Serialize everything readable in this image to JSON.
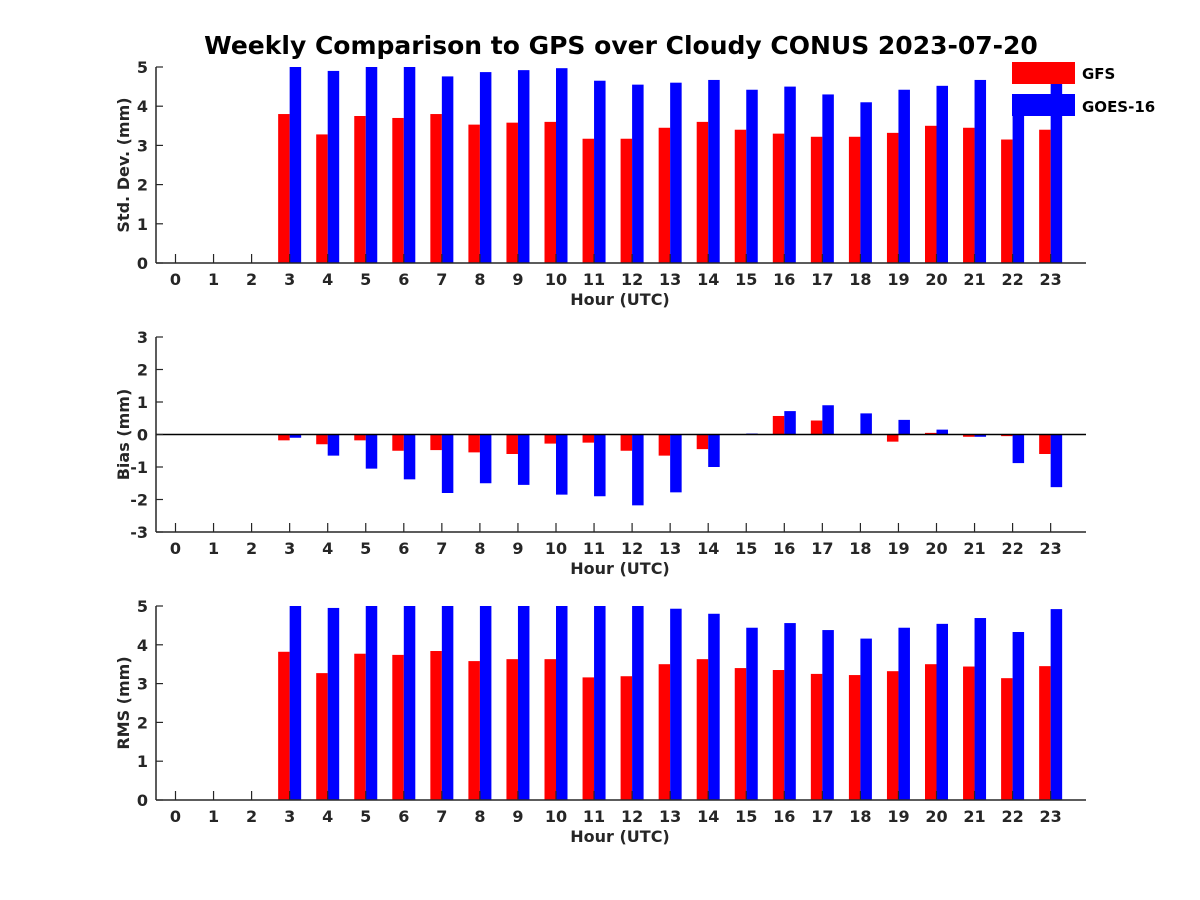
{
  "title": "Weekly Comparison to GPS over Cloudy CONUS 2023-07-20",
  "colors": {
    "gfs": "#ff0000",
    "goes": "#0000ff",
    "axis": "#262626"
  },
  "legend": [
    {
      "name": "GFS",
      "color": "#ff0000"
    },
    {
      "name": "GOES-16",
      "color": "#0000ff"
    }
  ],
  "legend_placement": "top-right",
  "chart_data": [
    {
      "type": "bar",
      "xlabel": "Hour (UTC)",
      "ylabel": "Std. Dev. (mm)",
      "ylim": [
        0,
        5
      ],
      "yticks": [
        0,
        1,
        2,
        3,
        4,
        5
      ],
      "categories": [
        "0",
        "1",
        "2",
        "3",
        "4",
        "5",
        "6",
        "7",
        "8",
        "9",
        "10",
        "11",
        "12",
        "13",
        "14",
        "15",
        "16",
        "17",
        "18",
        "19",
        "20",
        "21",
        "22",
        "23"
      ],
      "series": [
        {
          "name": "GFS",
          "values": [
            0,
            0,
            0,
            3.8,
            3.28,
            3.75,
            3.7,
            3.8,
            3.53,
            3.58,
            3.6,
            3.17,
            3.17,
            3.45,
            3.6,
            3.4,
            3.3,
            3.22,
            3.22,
            3.32,
            3.5,
            3.45,
            3.15,
            3.4
          ]
        },
        {
          "name": "GOES-16",
          "values": [
            0,
            0,
            0,
            5.0,
            4.9,
            5.0,
            5.0,
            4.76,
            4.87,
            4.92,
            4.97,
            4.65,
            4.55,
            4.6,
            4.67,
            4.42,
            4.5,
            4.3,
            4.1,
            4.42,
            4.52,
            4.67,
            4.25,
            4.7
          ]
        }
      ]
    },
    {
      "type": "bar",
      "xlabel": "Hour (UTC)",
      "ylabel": "Bias (mm)",
      "ylim": [
        -3,
        3
      ],
      "yticks": [
        -3,
        -2,
        -1,
        0,
        1,
        2,
        3
      ],
      "categories": [
        "0",
        "1",
        "2",
        "3",
        "4",
        "5",
        "6",
        "7",
        "8",
        "9",
        "10",
        "11",
        "12",
        "13",
        "14",
        "15",
        "16",
        "17",
        "18",
        "19",
        "20",
        "21",
        "22",
        "23"
      ],
      "series": [
        {
          "name": "GFS",
          "values": [
            0,
            0,
            0,
            -0.18,
            -0.3,
            -0.18,
            -0.5,
            -0.48,
            -0.55,
            -0.6,
            -0.28,
            -0.25,
            -0.5,
            -0.65,
            -0.45,
            0,
            0.57,
            0.43,
            0,
            -0.22,
            0.05,
            -0.07,
            -0.05,
            -0.6
          ]
        },
        {
          "name": "GOES-16",
          "values": [
            0,
            0,
            0,
            -0.1,
            -0.65,
            -1.05,
            -1.38,
            -1.8,
            -1.5,
            -1.55,
            -1.85,
            -1.9,
            -2.18,
            -1.78,
            -1.0,
            0.03,
            0.72,
            0.9,
            0.65,
            0.45,
            0.15,
            -0.07,
            -0.88,
            -1.62
          ]
        }
      ]
    },
    {
      "type": "bar",
      "xlabel": "Hour (UTC)",
      "ylabel": "RMS (mm)",
      "ylim": [
        0,
        5
      ],
      "yticks": [
        0,
        1,
        2,
        3,
        4,
        5
      ],
      "categories": [
        "0",
        "1",
        "2",
        "3",
        "4",
        "5",
        "6",
        "7",
        "8",
        "9",
        "10",
        "11",
        "12",
        "13",
        "14",
        "15",
        "16",
        "17",
        "18",
        "19",
        "20",
        "21",
        "22",
        "23"
      ],
      "series": [
        {
          "name": "GFS",
          "values": [
            0,
            0,
            0,
            3.82,
            3.27,
            3.77,
            3.74,
            3.84,
            3.58,
            3.63,
            3.63,
            3.16,
            3.19,
            3.5,
            3.63,
            3.4,
            3.35,
            3.25,
            3.22,
            3.32,
            3.5,
            3.44,
            3.14,
            3.45
          ]
        },
        {
          "name": "GOES-16",
          "values": [
            0,
            0,
            0,
            5.0,
            4.95,
            5.0,
            5.0,
            5.0,
            5.0,
            5.0,
            5.0,
            5.0,
            5.0,
            4.93,
            4.8,
            4.44,
            4.56,
            4.38,
            4.16,
            4.44,
            4.54,
            4.69,
            4.33,
            4.92
          ]
        }
      ]
    }
  ]
}
